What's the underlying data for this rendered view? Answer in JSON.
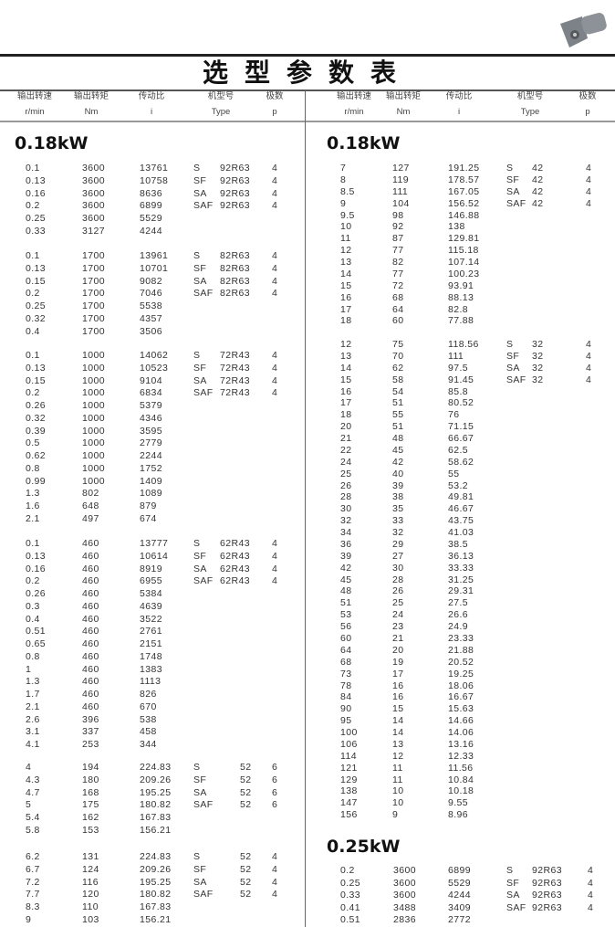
{
  "title": "选型参数表",
  "colors": {
    "text": "#333333",
    "rule": "#222222"
  },
  "headers": [
    {
      "cn": "输出转速",
      "unit": "r/min"
    },
    {
      "cn": "输出转矩",
      "unit": "Nm"
    },
    {
      "cn": "传动比",
      "unit": "i"
    },
    {
      "cn": "机型号",
      "unit": "Type"
    },
    {
      "cn": "极数",
      "unit": "p"
    }
  ],
  "left": {
    "heading": "0.18kW",
    "groups": [
      {
        "rows": [
          [
            "0.1",
            "3600",
            "13761",
            "S",
            "92R63",
            "4"
          ],
          [
            "0.13",
            "3600",
            "10758",
            "SF",
            "92R63",
            "4"
          ],
          [
            "0.16",
            "3600",
            "8636",
            "SA",
            "92R63",
            "4"
          ],
          [
            "0.2",
            "3600",
            "6899",
            "SAF",
            "92R63",
            "4"
          ],
          [
            "0.25",
            "3600",
            "5529",
            "",
            "",
            ""
          ],
          [
            "0.33",
            "3127",
            "4244",
            "",
            "",
            ""
          ]
        ]
      },
      {
        "rows": [
          [
            "0.1",
            "1700",
            "13961",
            "S",
            "82R63",
            "4"
          ],
          [
            "0.13",
            "1700",
            "10701",
            "SF",
            "82R63",
            "4"
          ],
          [
            "0.15",
            "1700",
            "9082",
            "SA",
            "82R63",
            "4"
          ],
          [
            "0.2",
            "1700",
            "7046",
            "SAF",
            "82R63",
            "4"
          ],
          [
            "0.25",
            "1700",
            "5538",
            "",
            "",
            ""
          ],
          [
            "0.32",
            "1700",
            "4357",
            "",
            "",
            ""
          ],
          [
            "0.4",
            "1700",
            "3506",
            "",
            "",
            ""
          ]
        ]
      },
      {
        "rows": [
          [
            "0.1",
            "1000",
            "14062",
            "S",
            "72R43",
            "4"
          ],
          [
            "0.13",
            "1000",
            "10523",
            "SF",
            "72R43",
            "4"
          ],
          [
            "0.15",
            "1000",
            "9104",
            "SA",
            "72R43",
            "4"
          ],
          [
            "0.2",
            "1000",
            "6834",
            "SAF",
            "72R43",
            "4"
          ],
          [
            "0.26",
            "1000",
            "5379",
            "",
            "",
            ""
          ],
          [
            "0.32",
            "1000",
            "4346",
            "",
            "",
            ""
          ],
          [
            "0.39",
            "1000",
            "3595",
            "",
            "",
            ""
          ],
          [
            "0.5",
            "1000",
            "2779",
            "",
            "",
            ""
          ],
          [
            "0.62",
            "1000",
            "2244",
            "",
            "",
            ""
          ],
          [
            "0.8",
            "1000",
            "1752",
            "",
            "",
            ""
          ],
          [
            "0.99",
            "1000",
            "1409",
            "",
            "",
            ""
          ],
          [
            "1.3",
            "802",
            "1089",
            "",
            "",
            ""
          ],
          [
            "1.6",
            "648",
            "879",
            "",
            "",
            ""
          ],
          [
            "2.1",
            "497",
            "674",
            "",
            "",
            ""
          ]
        ]
      },
      {
        "rows": [
          [
            "0.1",
            "460",
            "13777",
            "S",
            "62R43",
            "4"
          ],
          [
            "0.13",
            "460",
            "10614",
            "SF",
            "62R43",
            "4"
          ],
          [
            "0.16",
            "460",
            "8919",
            "SA",
            "62R43",
            "4"
          ],
          [
            "0.2",
            "460",
            "6955",
            "SAF",
            "62R43",
            "4"
          ],
          [
            "0.26",
            "460",
            "5384",
            "",
            "",
            ""
          ],
          [
            "0.3",
            "460",
            "4639",
            "",
            "",
            ""
          ],
          [
            "0.4",
            "460",
            "3522",
            "",
            "",
            ""
          ],
          [
            "0.51",
            "460",
            "2761",
            "",
            "",
            ""
          ],
          [
            "0.65",
            "460",
            "2151",
            "",
            "",
            ""
          ],
          [
            "0.8",
            "460",
            "1748",
            "",
            "",
            ""
          ],
          [
            "1",
            "460",
            "1383",
            "",
            "",
            ""
          ],
          [
            "1.3",
            "460",
            "1113",
            "",
            "",
            ""
          ],
          [
            "1.7",
            "460",
            "826",
            "",
            "",
            ""
          ],
          [
            "2.1",
            "460",
            "670",
            "",
            "",
            ""
          ],
          [
            "2.6",
            "396",
            "538",
            "",
            "",
            ""
          ],
          [
            "3.1",
            "337",
            "458",
            "",
            "",
            ""
          ],
          [
            "4.1",
            "253",
            "344",
            "",
            "",
            ""
          ]
        ]
      },
      {
        "rows": [
          [
            "4",
            "194",
            "224.83",
            "S",
            "52",
            "6"
          ],
          [
            "4.3",
            "180",
            "209.26",
            "SF",
            "52",
            "6"
          ],
          [
            "4.7",
            "168",
            "195.25",
            "SA",
            "52",
            "6"
          ],
          [
            "5",
            "175",
            "180.82",
            "SAF",
            "52",
            "6"
          ],
          [
            "5.4",
            "162",
            "167.83",
            "",
            "",
            ""
          ],
          [
            "5.8",
            "153",
            "156.21",
            "",
            "",
            ""
          ]
        ]
      },
      {
        "rows": [
          [
            "6.2",
            "131",
            "224.83",
            "S",
            "52",
            "4"
          ],
          [
            "6.7",
            "124",
            "209.26",
            "SF",
            "52",
            "4"
          ],
          [
            "7.2",
            "116",
            "195.25",
            "SA",
            "52",
            "4"
          ],
          [
            "7.7",
            "120",
            "180.82",
            "SAF",
            "52",
            "4"
          ],
          [
            "8.3",
            "110",
            "167.83",
            "",
            "",
            ""
          ],
          [
            "9",
            "103",
            "156.21",
            "",
            "",
            ""
          ]
        ]
      }
    ]
  },
  "right": {
    "heading": "0.18kW",
    "groups": [
      {
        "rows": [
          [
            "7",
            "127",
            "191.25",
            "S",
            "42",
            "4"
          ],
          [
            "8",
            "119",
            "178.57",
            "SF",
            "42",
            "4"
          ],
          [
            "8.5",
            "111",
            "167.05",
            "SA",
            "42",
            "4"
          ],
          [
            "9",
            "104",
            "156.52",
            "SAF",
            "42",
            "4"
          ],
          [
            "9.5",
            "98",
            "146.88",
            "",
            "",
            ""
          ],
          [
            "10",
            "92",
            "138",
            "",
            "",
            ""
          ],
          [
            "11",
            "87",
            "129.81",
            "",
            "",
            ""
          ],
          [
            "12",
            "77",
            "115.18",
            "",
            "",
            ""
          ],
          [
            "13",
            "82",
            "107.14",
            "",
            "",
            ""
          ],
          [
            "14",
            "77",
            "100.23",
            "",
            "",
            ""
          ],
          [
            "15",
            "72",
            "93.91",
            "",
            "",
            ""
          ],
          [
            "16",
            "68",
            "88.13",
            "",
            "",
            ""
          ],
          [
            "17",
            "64",
            "82.8",
            "",
            "",
            ""
          ],
          [
            "18",
            "60",
            "77.88",
            "",
            "",
            ""
          ]
        ]
      },
      {
        "rows": [
          [
            "12",
            "75",
            "118.56",
            "S",
            "32",
            "4"
          ],
          [
            "13",
            "70",
            "111",
            "SF",
            "32",
            "4"
          ],
          [
            "14",
            "62",
            "97.5",
            "SA",
            "32",
            "4"
          ],
          [
            "15",
            "58",
            "91.45",
            "SAF",
            "32",
            "4"
          ],
          [
            "16",
            "54",
            "85.8",
            "",
            "",
            ""
          ],
          [
            "17",
            "51",
            "80.52",
            "",
            "",
            ""
          ],
          [
            "18",
            "55",
            "76",
            "",
            "",
            ""
          ],
          [
            "20",
            "51",
            "71.15",
            "",
            "",
            ""
          ],
          [
            "21",
            "48",
            "66.67",
            "",
            "",
            ""
          ],
          [
            "22",
            "45",
            "62.5",
            "",
            "",
            ""
          ],
          [
            "24",
            "42",
            "58.62",
            "",
            "",
            ""
          ],
          [
            "25",
            "40",
            "55",
            "",
            "",
            ""
          ],
          [
            "26",
            "39",
            "53.2",
            "",
            "",
            ""
          ],
          [
            "28",
            "38",
            "49.81",
            "",
            "",
            ""
          ],
          [
            "30",
            "35",
            "46.67",
            "",
            "",
            ""
          ],
          [
            "32",
            "33",
            "43.75",
            "",
            "",
            ""
          ],
          [
            "34",
            "32",
            "41.03",
            "",
            "",
            ""
          ],
          [
            "36",
            "29",
            "38.5",
            "",
            "",
            ""
          ],
          [
            "39",
            "27",
            "36.13",
            "",
            "",
            ""
          ],
          [
            "42",
            "30",
            "33.33",
            "",
            "",
            ""
          ],
          [
            "45",
            "28",
            "31.25",
            "",
            "",
            ""
          ],
          [
            "48",
            "26",
            "29.31",
            "",
            "",
            ""
          ],
          [
            "51",
            "25",
            "27.5",
            "",
            "",
            ""
          ],
          [
            "53",
            "24",
            "26.6",
            "",
            "",
            ""
          ],
          [
            "56",
            "23",
            "24.9",
            "",
            "",
            ""
          ],
          [
            "60",
            "21",
            "23.33",
            "",
            "",
            ""
          ],
          [
            "64",
            "20",
            "21.88",
            "",
            "",
            ""
          ],
          [
            "68",
            "19",
            "20.52",
            "",
            "",
            ""
          ],
          [
            "73",
            "17",
            "19.25",
            "",
            "",
            ""
          ],
          [
            "78",
            "16",
            "18.06",
            "",
            "",
            ""
          ],
          [
            "84",
            "16",
            "16.67",
            "",
            "",
            ""
          ],
          [
            "90",
            "15",
            "15.63",
            "",
            "",
            ""
          ],
          [
            "95",
            "14",
            "14.66",
            "",
            "",
            ""
          ],
          [
            "100",
            "14",
            "14.06",
            "",
            "",
            ""
          ],
          [
            "106",
            "13",
            "13.16",
            "",
            "",
            ""
          ],
          [
            "114",
            "12",
            "12.33",
            "",
            "",
            ""
          ],
          [
            "121",
            "11",
            "11.56",
            "",
            "",
            ""
          ],
          [
            "129",
            "11",
            "10.84",
            "",
            "",
            ""
          ],
          [
            "138",
            "10",
            "10.18",
            "",
            "",
            ""
          ],
          [
            "147",
            "10",
            "9.55",
            "",
            "",
            ""
          ],
          [
            "156",
            "9",
            "8.96",
            "",
            "",
            ""
          ]
        ]
      }
    ]
  },
  "right2": {
    "heading": "0.25kW",
    "groups": [
      {
        "rows": [
          [
            "0.2",
            "3600",
            "6899",
            "S",
            "92R63",
            "4"
          ],
          [
            "0.25",
            "3600",
            "5529",
            "SF",
            "92R63",
            "4"
          ],
          [
            "0.33",
            "3600",
            "4244",
            "SA",
            "92R63",
            "4"
          ],
          [
            "0.41",
            "3488",
            "3409",
            "SAF",
            "92R63",
            "4"
          ],
          [
            "0.51",
            "2836",
            "2772",
            "",
            "",
            ""
          ]
        ]
      }
    ]
  }
}
